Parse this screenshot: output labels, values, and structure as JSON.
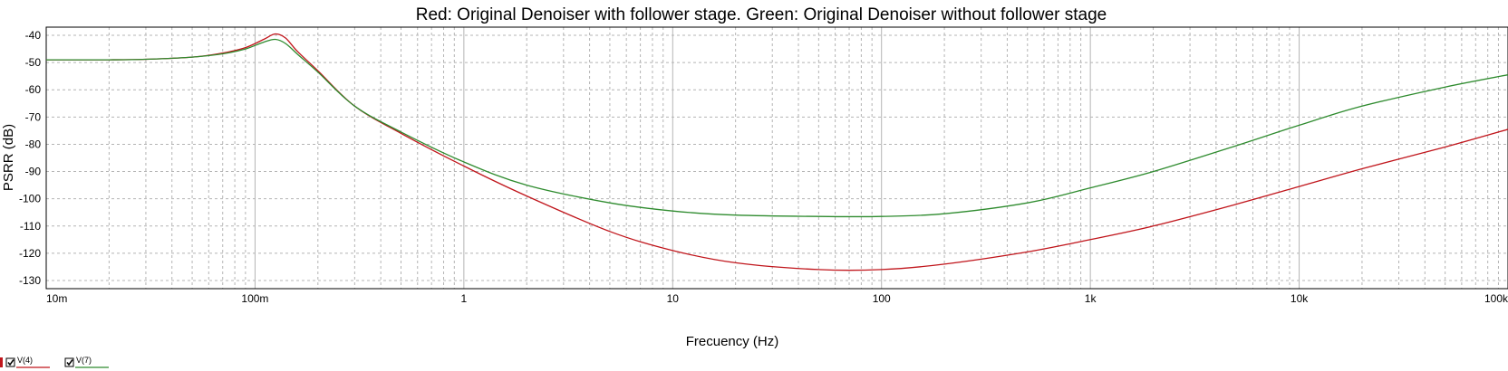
{
  "chart_data": {
    "type": "line",
    "title": "Red: Original Denoiser with follower stage. Green: Original Denoiser without follower stage",
    "xlabel": "Frecuency (Hz)",
    "ylabel": "PSRR (dB)",
    "xscale": "log",
    "xlim": [
      0.01,
      100000
    ],
    "ylim": [
      -133,
      -37
    ],
    "grid": true,
    "x_ticks": [
      {
        "value": 0.01,
        "label": "10m"
      },
      {
        "value": 0.1,
        "label": "100m"
      },
      {
        "value": 1,
        "label": "1"
      },
      {
        "value": 10,
        "label": "10"
      },
      {
        "value": 100,
        "label": "100"
      },
      {
        "value": 1000,
        "label": "1k"
      },
      {
        "value": 10000,
        "label": "10k"
      },
      {
        "value": 100000,
        "label": "100k"
      }
    ],
    "y_ticks": [
      {
        "value": -40,
        "label": "-40"
      },
      {
        "value": -50,
        "label": "-50"
      },
      {
        "value": -60,
        "label": "-60"
      },
      {
        "value": -70,
        "label": "-70"
      },
      {
        "value": -80,
        "label": "-80"
      },
      {
        "value": -90,
        "label": "-90"
      },
      {
        "value": -100,
        "label": "-100"
      },
      {
        "value": -110,
        "label": "-110"
      },
      {
        "value": -120,
        "label": "-120"
      },
      {
        "value": -130,
        "label": "-130"
      }
    ],
    "series": [
      {
        "name": "V(4)",
        "color": "#c0151b",
        "x": [
          0.01,
          0.02,
          0.03,
          0.05,
          0.07,
          0.09,
          0.11,
          0.125,
          0.14,
          0.16,
          0.2,
          0.3,
          0.5,
          1,
          2,
          5,
          10,
          20,
          50,
          100,
          200,
          500,
          1000,
          2000,
          5000,
          10000,
          20000,
          50000,
          100000
        ],
        "y": [
          -49,
          -49,
          -48.8,
          -48,
          -46.5,
          -44.5,
          -41.5,
          -39.5,
          -41,
          -46,
          -53,
          -66,
          -76,
          -88,
          -99,
          -112,
          -119,
          -123.5,
          -126,
          -126,
          -124,
          -119.5,
          -115,
          -110,
          -102,
          -95.5,
          -89,
          -81,
          -74.5
        ]
      },
      {
        "name": "V(7)",
        "color": "#2e8b2e",
        "x": [
          0.01,
          0.02,
          0.03,
          0.05,
          0.07,
          0.09,
          0.11,
          0.125,
          0.14,
          0.16,
          0.2,
          0.3,
          0.5,
          1,
          2,
          5,
          10,
          20,
          50,
          100,
          200,
          500,
          1000,
          2000,
          5000,
          10000,
          20000,
          50000,
          100000
        ],
        "y": [
          -49,
          -49,
          -48.8,
          -48,
          -46.8,
          -45,
          -42.5,
          -41.5,
          -43,
          -47,
          -53.5,
          -66,
          -75.5,
          -86.5,
          -95,
          -101.5,
          -104.5,
          -106,
          -106.5,
          -106.5,
          -105.5,
          -101.5,
          -96,
          -90,
          -80.5,
          -73,
          -66,
          -59,
          -54.5
        ]
      }
    ]
  }
}
